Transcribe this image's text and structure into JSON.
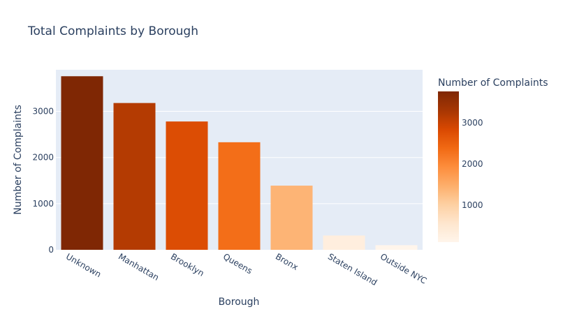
{
  "chart_data": {
    "type": "bar",
    "title": "Total Complaints by Borough",
    "xlabel": "Borough",
    "ylabel": "Number of Complaints",
    "categories": [
      "Unknown",
      "Manhattan",
      "Brooklyn",
      "Queens",
      "Bronx",
      "Staten Island",
      "Outside NYC"
    ],
    "values": [
      3760,
      3180,
      2780,
      2330,
      1390,
      310,
      100
    ],
    "ylim": [
      0,
      3900
    ],
    "yticks": [
      "0",
      "1000",
      "2000",
      "3000"
    ],
    "grid": true,
    "colorbar": {
      "title": "Number of Complaints",
      "ticks": [
        "1000",
        "2000",
        "3000"
      ],
      "range": [
        100,
        3760
      ],
      "colorscale": [
        "#fff5eb",
        "#fee6ce",
        "#fdd0a2",
        "#fdae6b",
        "#fd8d3c",
        "#f16913",
        "#d94801",
        "#a63603",
        "#7f2704"
      ]
    },
    "colors": {
      "plot_background": "#e5ecf6",
      "gridline": "#ffffff",
      "text": "#2a3f5f"
    }
  }
}
